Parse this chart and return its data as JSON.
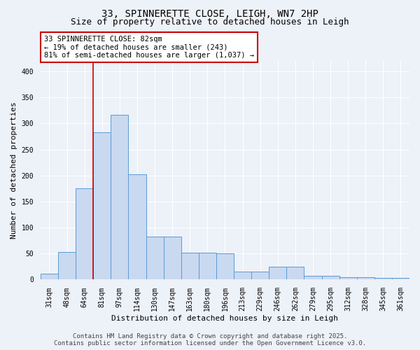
{
  "title_line1": "33, SPINNERETTE CLOSE, LEIGH, WN7 2HP",
  "title_line2": "Size of property relative to detached houses in Leigh",
  "xlabel": "Distribution of detached houses by size in Leigh",
  "ylabel": "Number of detached properties",
  "bin_labels": [
    "31sqm",
    "48sqm",
    "64sqm",
    "81sqm",
    "97sqm",
    "114sqm",
    "130sqm",
    "147sqm",
    "163sqm",
    "180sqm",
    "196sqm",
    "213sqm",
    "229sqm",
    "246sqm",
    "262sqm",
    "279sqm",
    "295sqm",
    "312sqm",
    "328sqm",
    "345sqm",
    "361sqm"
  ],
  "bar_heights": [
    12,
    53,
    176,
    283,
    316,
    202,
    83,
    83,
    52,
    52,
    50,
    15,
    15,
    25,
    25,
    7,
    7,
    5,
    5,
    3,
    3
  ],
  "bar_color": "#c9d9f0",
  "bar_edge_color": "#5b9bd5",
  "vline_bin_index": 3,
  "vline_color": "#cc0000",
  "annotation_text": "33 SPINNERETTE CLOSE: 82sqm\n← 19% of detached houses are smaller (243)\n81% of semi-detached houses are larger (1,037) →",
  "annotation_box_facecolor": "#ffffff",
  "annotation_box_edgecolor": "#cc0000",
  "ylim": [
    0,
    420
  ],
  "yticks": [
    0,
    50,
    100,
    150,
    200,
    250,
    300,
    350,
    400
  ],
  "footer_line1": "Contains HM Land Registry data © Crown copyright and database right 2025.",
  "footer_line2": "Contains public sector information licensed under the Open Government Licence v3.0.",
  "bg_color": "#edf1f8",
  "plot_bg_color": "#edf1f8",
  "grid_color": "#ffffff",
  "title_fontsize": 10,
  "subtitle_fontsize": 9,
  "axis_label_fontsize": 8,
  "tick_fontsize": 7,
  "annotation_fontsize": 7.5,
  "footer_fontsize": 6.5
}
